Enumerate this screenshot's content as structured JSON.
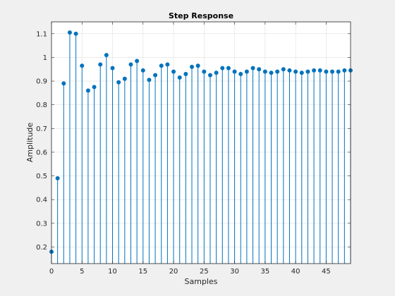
{
  "chart_data": {
    "type": "stem",
    "title": "Step Response",
    "xlabel": "Samples",
    "ylabel": "Amplitude",
    "xlim": [
      0,
      49
    ],
    "ylim": [
      0.13,
      1.15
    ],
    "xticks": [
      0,
      5,
      10,
      15,
      20,
      25,
      30,
      35,
      40,
      45
    ],
    "yticks": [
      0.2,
      0.3,
      0.4,
      0.5,
      0.6,
      0.7,
      0.8,
      0.9,
      1,
      1.1
    ],
    "ytick_labels": [
      "0.2",
      "0.3",
      "0.4",
      "0.5",
      "0.6",
      "0.7",
      "0.8",
      "0.9",
      "1",
      "1.1"
    ],
    "grid": true,
    "color": "#0072BD",
    "baseline": 0.13,
    "x": [
      0,
      1,
      2,
      3,
      4,
      5,
      6,
      7,
      8,
      9,
      10,
      11,
      12,
      13,
      14,
      15,
      16,
      17,
      18,
      19,
      20,
      21,
      22,
      23,
      24,
      25,
      26,
      27,
      28,
      29,
      30,
      31,
      32,
      33,
      34,
      35,
      36,
      37,
      38,
      39,
      40,
      41,
      42,
      43,
      44,
      45,
      46,
      47,
      48,
      49
    ],
    "values": [
      0.18,
      0.49,
      0.89,
      1.105,
      1.1,
      0.965,
      0.86,
      0.875,
      0.97,
      1.01,
      0.955,
      0.895,
      0.91,
      0.97,
      0.985,
      0.945,
      0.905,
      0.925,
      0.965,
      0.97,
      0.94,
      0.915,
      0.93,
      0.96,
      0.965,
      0.94,
      0.925,
      0.935,
      0.955,
      0.955,
      0.94,
      0.93,
      0.94,
      0.955,
      0.95,
      0.94,
      0.935,
      0.94,
      0.95,
      0.945,
      0.94,
      0.935,
      0.94,
      0.945,
      0.945,
      0.94,
      0.94,
      0.94,
      0.945,
      0.945
    ]
  }
}
